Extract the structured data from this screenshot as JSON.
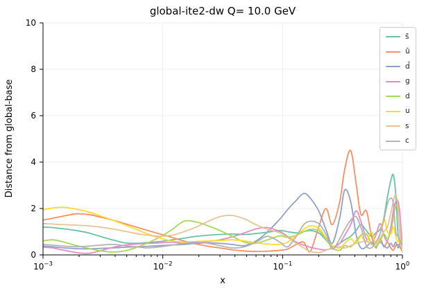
{
  "figure": {
    "title": "global-ite2-dw Q= 10.0 GeV",
    "xlabel": "x",
    "ylabel": "Distance from global-base"
  },
  "chart_data": {
    "type": "line",
    "title": "global-ite2-dw Q= 10.0 GeV",
    "xlabel": "x",
    "ylabel": "Distance from global-base",
    "x_scale": "log",
    "xlim": [
      0.001,
      1.0
    ],
    "ylim": [
      0,
      10
    ],
    "grid": "light",
    "legend_position": "upper right",
    "y_ticks": [
      0,
      2,
      4,
      6,
      8,
      10
    ],
    "x_ticks": [
      {
        "value": 0.001,
        "base": "10",
        "exp": "−3"
      },
      {
        "value": 0.01,
        "base": "10",
        "exp": "−2"
      },
      {
        "value": 0.1,
        "base": "10",
        "exp": "−1"
      },
      {
        "value": 1.0,
        "base": "10",
        "exp": "0"
      }
    ],
    "x": [
      0.001,
      0.0012,
      0.0015,
      0.0019,
      0.0024,
      0.003,
      0.0038,
      0.0048,
      0.006,
      0.0075,
      0.0095,
      0.012,
      0.015,
      0.019,
      0.024,
      0.03,
      0.038,
      0.048,
      0.06,
      0.075,
      0.095,
      0.11,
      0.13,
      0.15,
      0.17,
      0.2,
      0.23,
      0.26,
      0.3,
      0.33,
      0.37,
      0.41,
      0.45,
      0.5,
      0.55,
      0.6,
      0.65,
      0.7,
      0.75,
      0.8,
      0.84,
      0.88,
      0.92,
      0.96,
      1.0
    ],
    "series": [
      {
        "key": "sbar",
        "name": "s̄",
        "color": "#66c2a5",
        "values": [
          1.2,
          1.18,
          1.12,
          1.05,
          0.95,
          0.8,
          0.65,
          0.52,
          0.5,
          0.53,
          0.58,
          0.65,
          0.72,
          0.8,
          0.85,
          0.88,
          0.9,
          0.88,
          0.92,
          0.98,
          1.05,
          1.0,
          0.95,
          1.0,
          1.05,
          0.95,
          0.65,
          0.35,
          0.5,
          0.65,
          0.8,
          1.05,
          1.3,
          1.05,
          0.8,
          0.95,
          1.1,
          1.6,
          2.5,
          3.2,
          3.45,
          2.6,
          0.9,
          0.5,
          0.15
        ]
      },
      {
        "key": "ubar",
        "name": "ū",
        "color": "#fc8d62",
        "values": [
          1.5,
          1.58,
          1.68,
          1.77,
          1.74,
          1.63,
          1.5,
          1.35,
          1.2,
          1.05,
          0.9,
          0.75,
          0.6,
          0.47,
          0.37,
          0.3,
          0.22,
          0.17,
          0.15,
          0.16,
          0.2,
          0.25,
          0.45,
          0.55,
          0.15,
          1.2,
          2.0,
          1.3,
          2.3,
          3.7,
          4.5,
          3.1,
          1.75,
          1.9,
          0.85,
          0.3,
          0.7,
          0.35,
          0.55,
          0.3,
          0.2,
          0.4,
          0.45,
          0.3,
          0.15
        ]
      },
      {
        "key": "dbar",
        "name": "d̄",
        "color": "#8da0cb",
        "values": [
          0.38,
          0.35,
          0.3,
          0.27,
          0.26,
          0.28,
          0.3,
          0.33,
          0.35,
          0.37,
          0.4,
          0.43,
          0.45,
          0.5,
          0.52,
          0.5,
          0.45,
          0.4,
          0.6,
          1.0,
          1.55,
          1.95,
          2.35,
          2.65,
          2.45,
          1.9,
          1.1,
          0.5,
          1.6,
          2.8,
          2.3,
          0.9,
          0.3,
          0.35,
          0.55,
          0.35,
          0.55,
          0.4,
          0.3,
          0.5,
          0.35,
          0.55,
          0.3,
          0.55,
          0.45
        ]
      },
      {
        "key": "g",
        "name": "g",
        "color": "#e78ac3",
        "values": [
          0.33,
          0.3,
          0.2,
          0.1,
          0.07,
          0.18,
          0.32,
          0.42,
          0.47,
          0.5,
          0.52,
          0.55,
          0.5,
          0.52,
          0.58,
          0.65,
          0.78,
          0.95,
          1.12,
          1.18,
          1.0,
          0.8,
          0.55,
          0.42,
          0.33,
          0.25,
          0.22,
          0.3,
          0.5,
          0.85,
          1.3,
          1.9,
          1.45,
          0.7,
          0.5,
          0.85,
          1.35,
          0.85,
          0.6,
          1.2,
          1.9,
          2.3,
          2.3,
          1.6,
          0.15
        ]
      },
      {
        "key": "d",
        "name": "d",
        "color": "#a6d854",
        "values": [
          0.6,
          0.65,
          0.55,
          0.4,
          0.28,
          0.18,
          0.12,
          0.17,
          0.32,
          0.52,
          0.78,
          1.1,
          1.45,
          1.42,
          1.25,
          1.05,
          0.8,
          0.55,
          0.5,
          0.65,
          0.82,
          0.75,
          0.85,
          1.0,
          1.1,
          1.05,
          0.7,
          0.3,
          0.2,
          0.4,
          0.35,
          0.6,
          0.85,
          0.9,
          0.5,
          0.35,
          0.6,
          0.9,
          0.7,
          1.0,
          1.6,
          2.1,
          1.9,
          0.7,
          0.2
        ]
      },
      {
        "key": "u",
        "name": "u",
        "color": "#ffd92f",
        "values": [
          1.95,
          2.02,
          2.05,
          1.97,
          1.85,
          1.68,
          1.5,
          1.3,
          1.1,
          0.9,
          0.72,
          0.6,
          0.55,
          0.58,
          0.6,
          0.62,
          0.65,
          0.6,
          0.52,
          0.47,
          0.45,
          0.55,
          0.85,
          1.1,
          1.25,
          1.15,
          0.75,
          0.4,
          0.3,
          0.5,
          0.7,
          0.5,
          0.8,
          0.55,
          1.0,
          0.5,
          0.9,
          1.55,
          1.0,
          0.9,
          1.2,
          0.8,
          0.55,
          0.75,
          0.2
        ]
      },
      {
        "key": "s",
        "name": "s",
        "color": "#e5c494",
        "values": [
          1.35,
          1.33,
          1.3,
          1.28,
          1.25,
          1.2,
          1.12,
          1.02,
          0.92,
          0.85,
          0.8,
          0.85,
          1.0,
          1.2,
          1.45,
          1.65,
          1.7,
          1.55,
          1.3,
          1.1,
          0.95,
          0.75,
          0.5,
          0.3,
          0.15,
          0.1,
          0.2,
          0.3,
          0.35,
          0.3,
          0.4,
          0.5,
          0.55,
          0.6,
          0.45,
          0.4,
          0.7,
          1.0,
          1.2,
          1.8,
          2.3,
          2.6,
          2.0,
          0.6,
          0.3
        ]
      },
      {
        "key": "c",
        "name": "c",
        "color": "#b3b3b3",
        "values": [
          0.45,
          0.42,
          0.38,
          0.35,
          0.38,
          0.42,
          0.45,
          0.4,
          0.35,
          0.3,
          0.35,
          0.42,
          0.5,
          0.55,
          0.5,
          0.4,
          0.3,
          0.35,
          0.55,
          0.8,
          0.55,
          0.35,
          0.8,
          1.3,
          1.45,
          1.35,
          0.9,
          0.25,
          0.7,
          1.1,
          1.5,
          1.65,
          1.2,
          0.4,
          0.3,
          0.55,
          0.9,
          1.5,
          2.2,
          2.45,
          2.2,
          1.0,
          0.8,
          0.6,
          0.4
        ]
      }
    ]
  },
  "style": {
    "grid_color": "#ededed",
    "spine_color": "#000000",
    "tick_label_color": "#000000",
    "legend_border_color": "#cccccc"
  }
}
